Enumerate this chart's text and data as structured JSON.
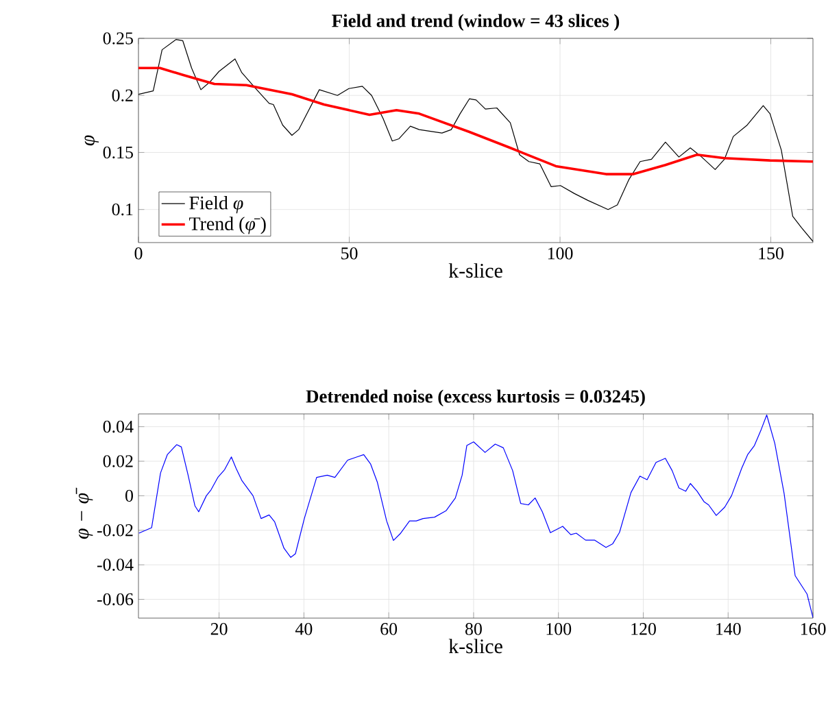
{
  "chart_data": [
    {
      "type": "line",
      "title": "Field and trend (window = 43 slices )",
      "xlabel": "k-slice",
      "ylabel": "φ",
      "xlim": [
        0,
        160
      ],
      "ylim": [
        0.071,
        0.25
      ],
      "xticks": [
        0,
        50,
        100,
        150
      ],
      "yticks": [
        0.1,
        0.15,
        0.2,
        0.25
      ],
      "grid": true,
      "legend": "bottom left",
      "marker": "none",
      "line_style": "solid",
      "series": [
        {
          "name": "Field *φ*",
          "color": "#000000",
          "x": [
            0,
            3.5,
            5.6,
            8.9,
            10.5,
            12.6,
            14.8,
            17,
            19.1,
            22.9,
            24.5,
            27.8,
            31,
            32,
            34.2,
            36.4,
            38,
            42.9,
            47.2,
            49.9,
            53.1,
            55.3,
            58,
            60.2,
            61.8,
            64.5,
            66.6,
            72,
            74.2,
            76.3,
            78.5,
            80.1,
            82.3,
            85,
            88.2,
            90.4,
            92.6,
            95.2,
            97.9,
            100.1,
            103.4,
            106.6,
            111.4,
            113.6,
            116.3,
            119,
            121.7,
            125,
            128.2,
            130.9,
            133.6,
            136.8,
            139,
            141.1,
            144.4,
            148.2,
            149.8,
            152.5,
            155.2,
            157.3,
            160
          ],
          "values": [
            0.201,
            0.204,
            0.24,
            0.249,
            0.248,
            0.224,
            0.205,
            0.212,
            0.221,
            0.232,
            0.22,
            0.206,
            0.193,
            0.192,
            0.174,
            0.165,
            0.17,
            0.205,
            0.2,
            0.206,
            0.208,
            0.2,
            0.18,
            0.16,
            0.162,
            0.173,
            0.17,
            0.167,
            0.17,
            0.184,
            0.197,
            0.196,
            0.188,
            0.189,
            0.176,
            0.148,
            0.142,
            0.14,
            0.12,
            0.121,
            0.114,
            0.108,
            0.1,
            0.104,
            0.126,
            0.142,
            0.144,
            0.159,
            0.146,
            0.154,
            0.146,
            0.135,
            0.144,
            0.164,
            0.174,
            0.191,
            0.184,
            0.152,
            0.094,
            0.084,
            0.072
          ]
        },
        {
          "name": "Trend (*φ̄*)",
          "color": "#ff0000",
          "x": [
            0,
            5.1,
            10.5,
            18,
            25.6,
            36.4,
            44,
            54.8,
            61.2,
            66.6,
            78.5,
            88.2,
            99,
            110.9,
            117.4,
            125,
            132.5,
            139,
            149.8,
            160
          ],
          "values": [
            0.224,
            0.224,
            0.218,
            0.21,
            0.209,
            0.201,
            0.192,
            0.183,
            0.187,
            0.184,
            0.168,
            0.154,
            0.138,
            0.131,
            0.131,
            0.139,
            0.148,
            0.145,
            0.143,
            0.142
          ]
        }
      ]
    },
    {
      "type": "line",
      "title": "Detrended noise (excess kurtosis = 0.03245)",
      "xlabel": "k-slice",
      "ylabel": "φ − φ̄",
      "xlim": [
        1,
        160
      ],
      "ylim": [
        -0.0709,
        0.0474
      ],
      "xticks": [
        20,
        40,
        60,
        80,
        100,
        120,
        140,
        160
      ],
      "yticks": [
        -0.06,
        -0.04,
        -0.02,
        0,
        0.02,
        0.04
      ],
      "grid": true,
      "marker": "none",
      "line_style": "solid",
      "series": [
        {
          "color": "#0000ff",
          "x": [
            1.1,
            4.1,
            6.2,
            7.8,
            10,
            11.1,
            12.7,
            14.3,
            15.2,
            17,
            18.1,
            19.7,
            21.3,
            22.9,
            24,
            25.4,
            28,
            29.9,
            31.8,
            33.1,
            35.3,
            36.9,
            38,
            40.1,
            43,
            45.5,
            47.3,
            50.3,
            52.5,
            54.1,
            55.7,
            57.3,
            59.5,
            61.1,
            62.7,
            64.9,
            66.5,
            68.1,
            70.8,
            73.5,
            75.7,
            77.3,
            78.4,
            80,
            82.7,
            85.1,
            87,
            89.2,
            91.1,
            92.9,
            94.5,
            96.2,
            98.1,
            101,
            102.9,
            104.2,
            106.4,
            108.5,
            111.2,
            112.8,
            114.4,
            117.1,
            119.2,
            120.9,
            123,
            125.2,
            126.8,
            128.4,
            130,
            131.1,
            132.7,
            134.3,
            135.4,
            137.2,
            139.2,
            140.8,
            143.2,
            144.6,
            146.2,
            147.8,
            149.1,
            151,
            153.2,
            155.8,
            158.6,
            160
          ],
          "values": [
            -0.0217,
            -0.0185,
            0.0132,
            0.0238,
            0.0296,
            0.0283,
            0.0119,
            -0.0058,
            -0.0093,
            0,
            0.0034,
            0.0106,
            0.0151,
            0.0225,
            0.0159,
            0.0087,
            0,
            -0.0132,
            -0.0111,
            -0.0151,
            -0.0304,
            -0.0357,
            -0.0336,
            -0.0132,
            0.0106,
            0.0119,
            0.0106,
            0.0206,
            0.0225,
            0.0238,
            0.0185,
            0.0079,
            -0.0146,
            -0.0259,
            -0.022,
            -0.0146,
            -0.0146,
            -0.0132,
            -0.0124,
            -0.0087,
            -0.0013,
            0.0119,
            0.0291,
            0.0312,
            0.0251,
            0.0299,
            0.0278,
            0.0146,
            -0.0045,
            -0.0053,
            -0.0013,
            -0.0093,
            -0.0214,
            -0.0177,
            -0.0225,
            -0.0217,
            -0.0257,
            -0.0257,
            -0.0299,
            -0.0278,
            -0.0212,
            0.0019,
            0.0114,
            0.0093,
            0.0193,
            0.0217,
            0.0146,
            0.0045,
            0.0026,
            0.0071,
            0.0026,
            -0.0034,
            -0.0053,
            -0.0114,
            -0.0066,
            0,
            0.0159,
            0.0238,
            0.0291,
            0.0384,
            0.0468,
            0.0304,
            0.0013,
            -0.0463,
            -0.0569,
            -0.0706
          ]
        }
      ]
    }
  ]
}
